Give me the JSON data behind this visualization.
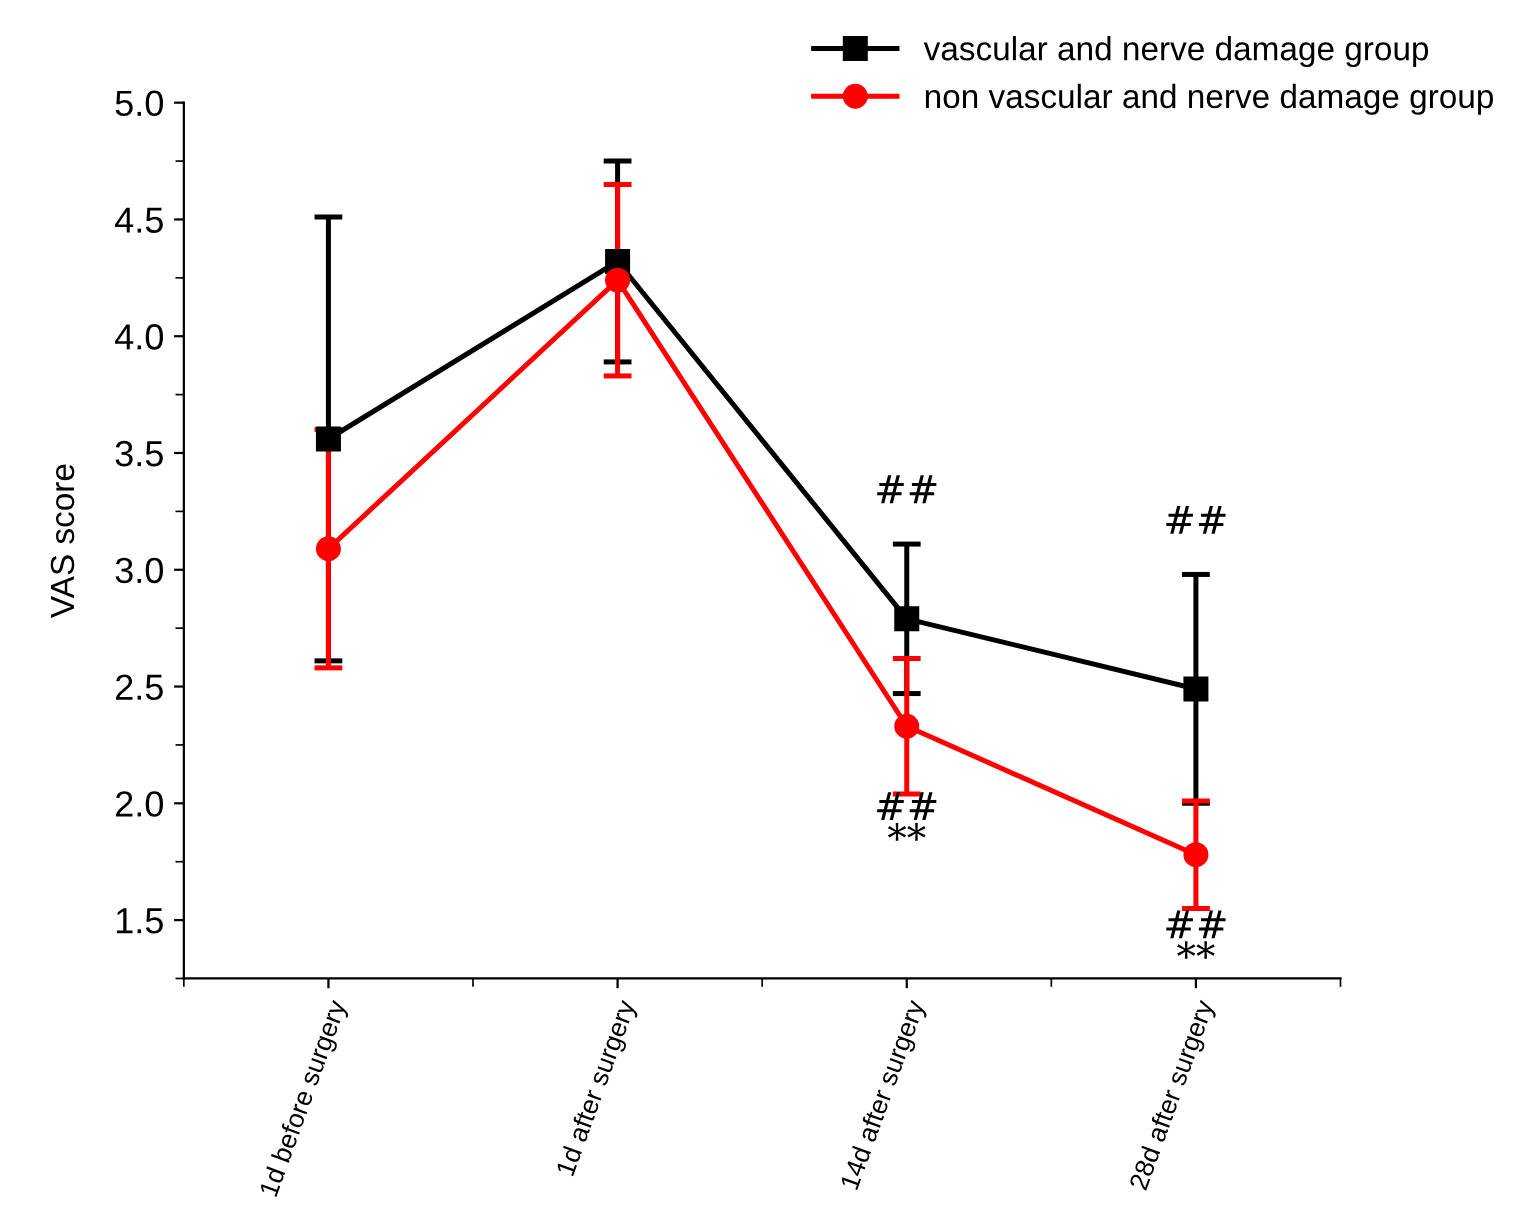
{
  "chart_data": {
    "type": "line",
    "ylabel": "VAS score",
    "categories": [
      "1d before surgery",
      "1d after surgery",
      "14d after surgery",
      "28d after surgery"
    ],
    "series": [
      {
        "name": "vascular and nerve damage group",
        "color": "#000000",
        "marker": "square",
        "values": [
          3.56,
          4.32,
          2.79,
          2.49
        ],
        "errors": [
          0.95,
          0.43,
          0.32,
          0.49
        ]
      },
      {
        "name": "non vascular and nerve damage group",
        "color": "#ff0000",
        "marker": "circle",
        "values": [
          3.09,
          4.24,
          2.33,
          1.78
        ],
        "errors": [
          0.51,
          0.41,
          0.29,
          0.23
        ]
      }
    ],
    "ylim": [
      1.25,
      5.0
    ],
    "yticks": [
      1.5,
      {
        "value": 2,
        "label": "2.0"
      },
      2.5,
      {
        "value": 3,
        "label": "3.0"
      },
      3.5,
      {
        "value": 4,
        "label": "4.0"
      },
      4.5,
      {
        "value": 5,
        "label": "5.0"
      }
    ],
    "grid": false,
    "legend": "top right",
    "line_style": "solid",
    "annotations": [
      "##",
      "##\n**",
      "##",
      "##\n**"
    ]
  }
}
